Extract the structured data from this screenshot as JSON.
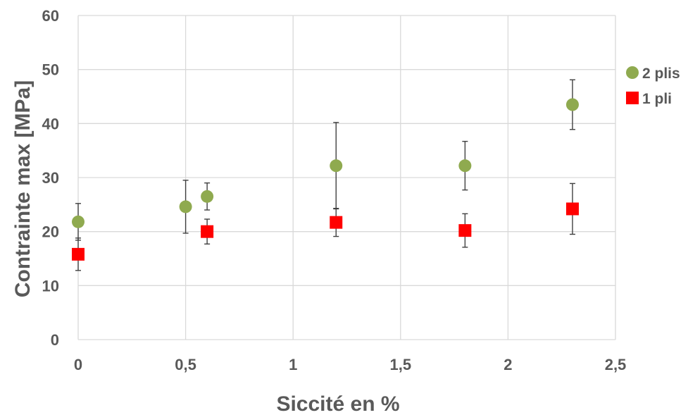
{
  "chart_data": {
    "type": "scatter",
    "xlabel": "Siccité en %",
    "ylabel": "Contrainte max [MPa]",
    "xlim": [
      0,
      2.5
    ],
    "ylim": [
      0,
      60
    ],
    "xticks": [
      "0",
      "0,5",
      "1",
      "1,5",
      "2",
      "2,5"
    ],
    "xtick_values": [
      0,
      0.5,
      1,
      1.5,
      2,
      2.5
    ],
    "yticks": [
      "0",
      "10",
      "20",
      "30",
      "40",
      "50",
      "60"
    ],
    "ytick_values": [
      0,
      10,
      20,
      30,
      40,
      50,
      60
    ],
    "grid": true,
    "legend_position": "right",
    "series": [
      {
        "name": "2 plis",
        "marker": "circle",
        "color": "#8faa4f",
        "points": [
          {
            "x": 0,
            "y": 21.8,
            "err": 3.4
          },
          {
            "x": 0.5,
            "y": 24.6,
            "err": 4.9
          },
          {
            "x": 0.6,
            "y": 26.5,
            "err": 2.5
          },
          {
            "x": 1.2,
            "y": 32.2,
            "err": 8.0
          },
          {
            "x": 1.8,
            "y": 32.2,
            "err": 4.5
          },
          {
            "x": 2.3,
            "y": 43.5,
            "err": 4.6
          }
        ]
      },
      {
        "name": "1 pli",
        "marker": "square",
        "color": "#ff0000",
        "points": [
          {
            "x": 0,
            "y": 15.8,
            "err": 3.0
          },
          {
            "x": 0.6,
            "y": 20.0,
            "err": 2.3
          },
          {
            "x": 1.2,
            "y": 21.7,
            "err": 2.6
          },
          {
            "x": 1.8,
            "y": 20.2,
            "err": 3.1
          },
          {
            "x": 2.3,
            "y": 24.2,
            "err": 4.7
          }
        ]
      }
    ]
  }
}
